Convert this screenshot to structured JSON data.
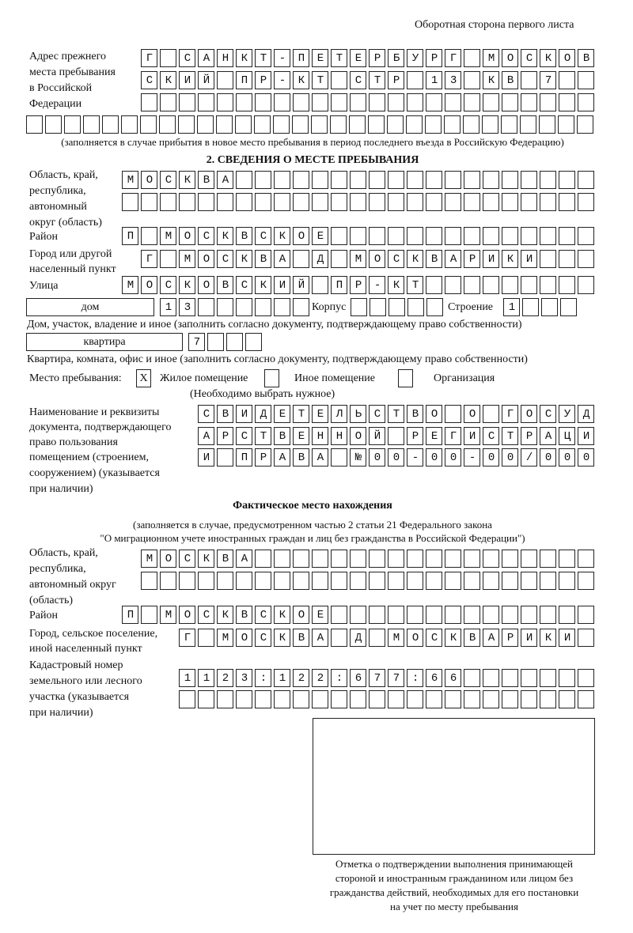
{
  "header": "Оборотная сторона первого листа",
  "previous_address": {
    "label": [
      "Адрес прежнего",
      "места пребывания",
      "в Российской",
      "Федерации"
    ],
    "rows": [
      "Г САНКТ-ПЕТЕРБУРГ МОСКОВ",
      "СКИЙ ПР-КТ СТР 13 КВ 7",
      "",
      ""
    ],
    "note": "(заполняется в случае прибытия в новое место пребывания в период последнего въезда в Российскую Федерацию)"
  },
  "section2": {
    "title": "2. СВЕДЕНИЯ О МЕСТЕ ПРЕБЫВАНИЯ",
    "region_label": [
      "Область, край,",
      "республика,",
      "автономный",
      "округ (область)"
    ],
    "region_rows": [
      "МОСКВА",
      ""
    ],
    "district_label": "Район",
    "district": "П МОСКВСКОЕ",
    "city_label": [
      "Город или другой",
      "населенный пункт"
    ],
    "city": "Г МОСКВА Д МОСКВАРИКИ",
    "street_label": "Улица",
    "street": "МОСКОВСКИЙ ПР-КТ",
    "house_type": "дом",
    "house": "13",
    "korpus_label": "Корпус",
    "korpus": "",
    "building_label": "Строение",
    "building": "1",
    "house_note": "Дом, участок, владение и иное (заполнить согласно документу, подтверждающему право собственности)",
    "apt_type": "квартира",
    "apt": "7",
    "apt_note": "Квартира, комната, офис и иное (заполнить согласно документу, подтверждающему право собственности)",
    "place_label": "Место пребывания:",
    "place_options": [
      {
        "label": "Жилое помещение",
        "mark": "X"
      },
      {
        "label": "Иное помещение",
        "mark": ""
      },
      {
        "label": "Организация",
        "mark": ""
      }
    ],
    "place_note": "(Необходимо выбрать нужное)",
    "doc_label": [
      "Наименование и реквизиты",
      "документа, подтверждающего",
      "право пользования",
      "помещением (строением,",
      "сооружением) (указывается",
      "при наличии)"
    ],
    "doc_rows": [
      "СВИДЕТЕЛЬСТВО О ГОСУД",
      "АРСТВЕННОЙ РЕГИСТРАЦИ",
      "И ПРАВА №00-00-00/000"
    ]
  },
  "actual": {
    "title": "Фактическое место нахождения",
    "note": [
      "(заполняется в случае, предусмотренном частью 2 статьи 21 Федерального закона",
      "\"О миграционном учете иностранных граждан и лиц без гражданства в Российской Федерации\")"
    ],
    "region_label": [
      "Область, край,",
      "республика,",
      "автономный округ",
      "(область)"
    ],
    "region_rows": [
      "МОСКВА",
      ""
    ],
    "district_label": "Район",
    "district": "П МОСКВСКОЕ",
    "city_label": [
      "Город, сельское поселение,",
      "иной населенный пункт"
    ],
    "city": "Г МОСКВА Д МОСКВАРИКИ",
    "cadastral_label": [
      "Кадастровый номер",
      "земельного или лесного",
      "участка (указывается",
      "при наличии)"
    ],
    "cadastral_rows": [
      "1123:122:677:66",
      ""
    ]
  },
  "stamp_caption": [
    "Отметка о подтверждении выполнения принимающей",
    "стороной и иностранным гражданином или лицом без",
    "гражданства действий, необходимых для его постановки",
    "на учет по месту пребывания"
  ]
}
